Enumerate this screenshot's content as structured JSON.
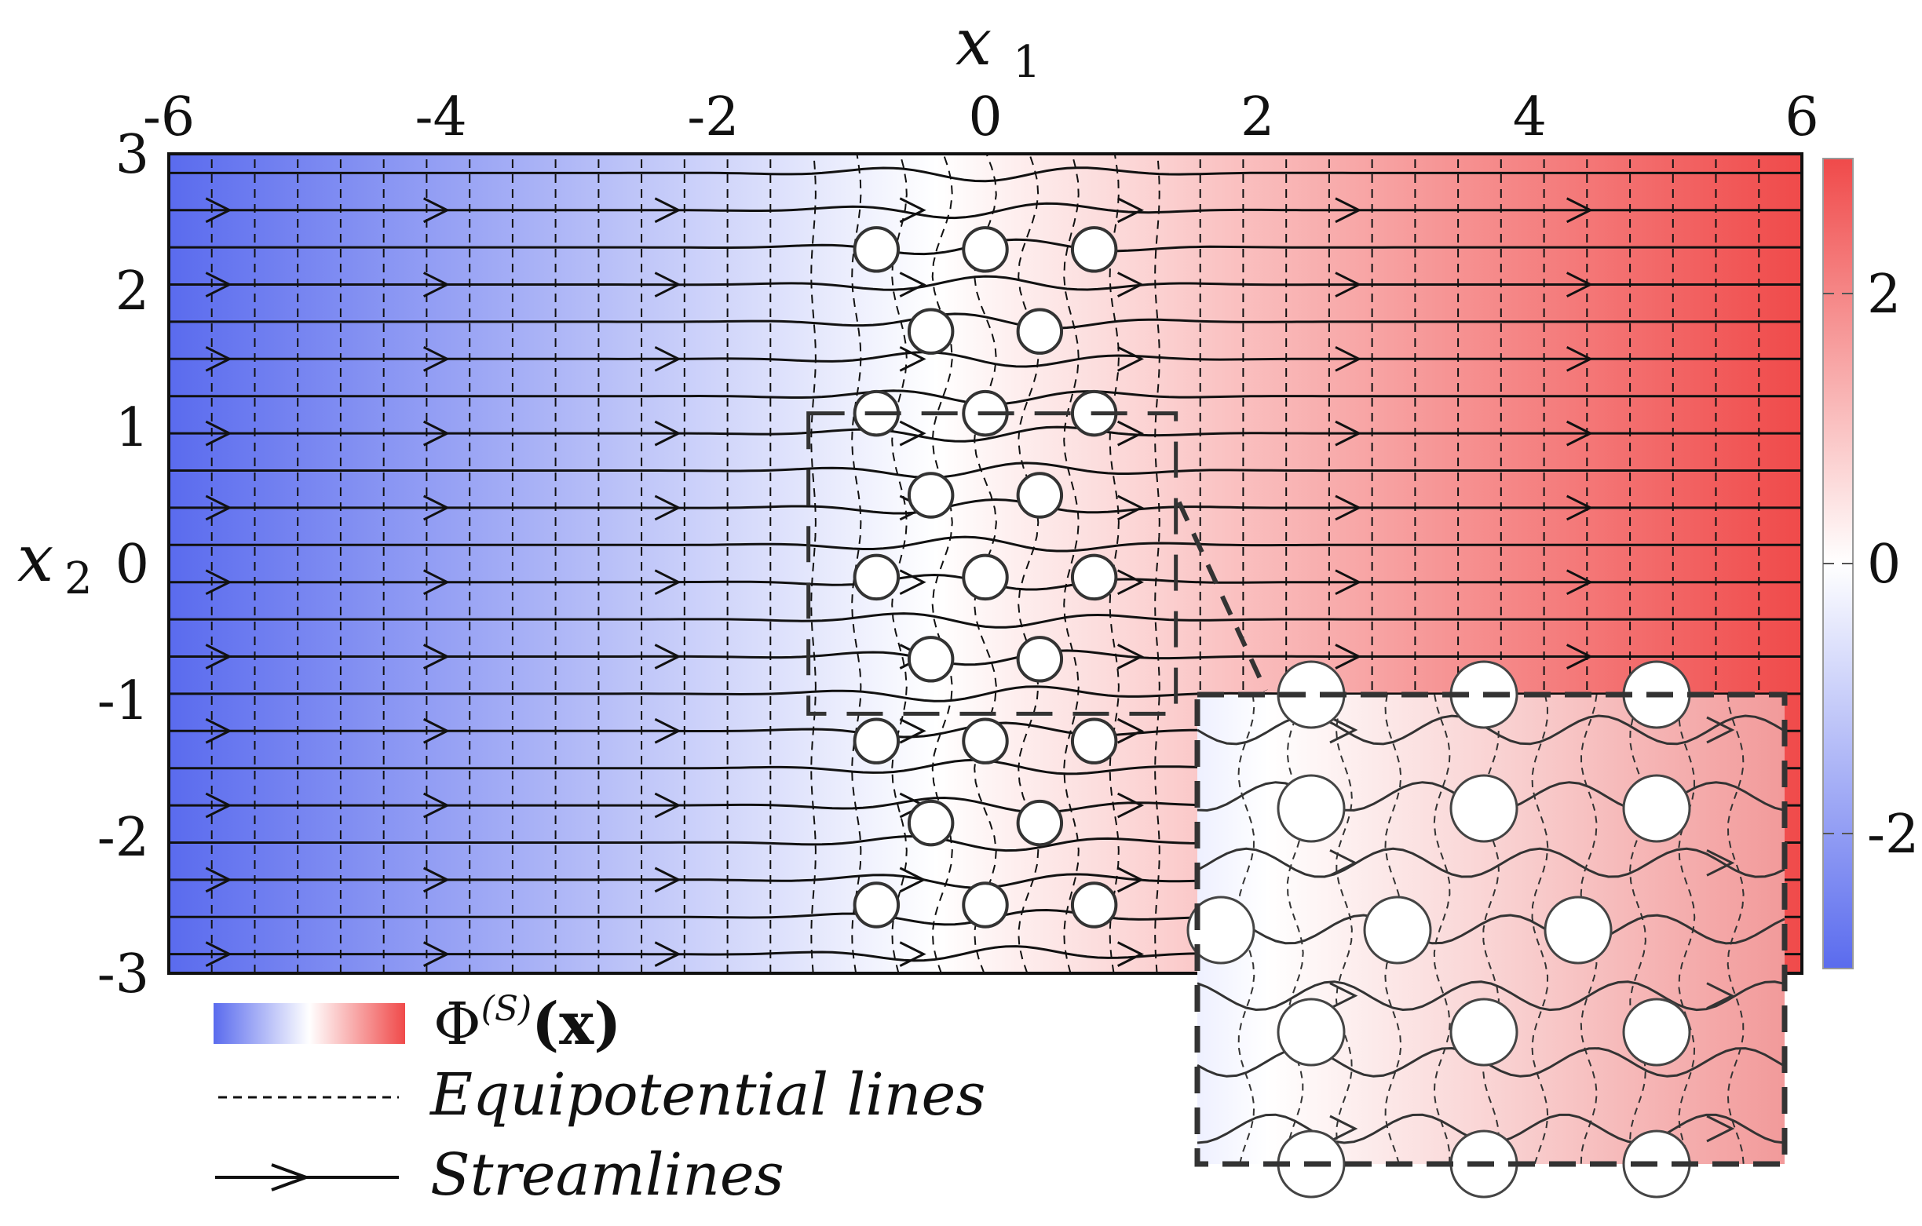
{
  "chart_data": {
    "type": "heatmap",
    "title": "",
    "xlabel": "x",
    "xlabel_subscript": "1",
    "ylabel": "x",
    "ylabel_subscript": "2",
    "xlim": [
      -6,
      6
    ],
    "ylim": [
      -3,
      3
    ],
    "x_ticks": [
      "-6",
      "-4",
      "-2",
      "0",
      "2",
      "4",
      "6"
    ],
    "y_ticks": [
      "3",
      "2",
      "1",
      "0",
      "-1",
      "-2",
      "-3"
    ],
    "colorbar": {
      "range": [
        -3,
        3
      ],
      "ticks": [
        "2",
        "0",
        "-2"
      ],
      "low_color": "#5a6bee",
      "mid_color": "#ffffff",
      "high_color": "#f04a4a"
    },
    "field": "potential increases linearly from left (blue) to right (red)",
    "inclusions": [
      {
        "x": -0.8,
        "y": 2.3
      },
      {
        "x": 0.0,
        "y": 2.3
      },
      {
        "x": 0.8,
        "y": 2.3
      },
      {
        "x": -0.4,
        "y": 1.7
      },
      {
        "x": 0.4,
        "y": 1.7
      },
      {
        "x": -0.8,
        "y": 1.1
      },
      {
        "x": 0.0,
        "y": 1.1
      },
      {
        "x": 0.8,
        "y": 1.1
      },
      {
        "x": -0.4,
        "y": 0.5
      },
      {
        "x": 0.4,
        "y": 0.5
      },
      {
        "x": -0.8,
        "y": -0.1
      },
      {
        "x": 0.0,
        "y": -0.1
      },
      {
        "x": 0.8,
        "y": -0.1
      },
      {
        "x": -0.4,
        "y": -0.7
      },
      {
        "x": 0.4,
        "y": -0.7
      },
      {
        "x": -0.8,
        "y": -1.3
      },
      {
        "x": 0.0,
        "y": -1.3
      },
      {
        "x": 0.8,
        "y": -1.3
      },
      {
        "x": -0.4,
        "y": -1.9
      },
      {
        "x": 0.4,
        "y": -1.9
      },
      {
        "x": -0.8,
        "y": -2.5
      },
      {
        "x": 0.0,
        "y": -2.5
      },
      {
        "x": 0.8,
        "y": -2.5
      }
    ],
    "inclusion_radius": 0.16,
    "zoom_region": {
      "x": [
        -1.3,
        1.4
      ],
      "y": [
        -1.1,
        1.1
      ]
    },
    "legend": {
      "colormap_label_base": "Φ",
      "colormap_label_sup": "(S)",
      "colormap_label_arg": "(x)",
      "equipotential_label": "Equipotential lines",
      "streamline_label": "Streamlines"
    }
  }
}
